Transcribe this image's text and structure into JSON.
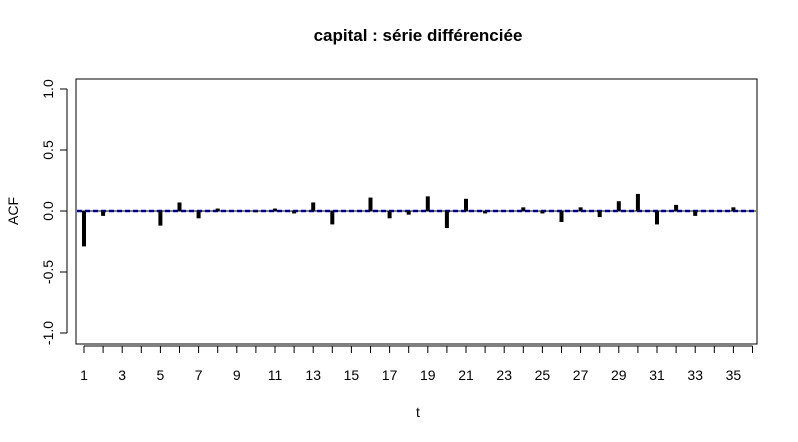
{
  "chart_data": {
    "type": "bar",
    "title": "capital : série différenciée",
    "xlabel": "t",
    "ylabel": "ACF",
    "xlim": [
      1,
      36
    ],
    "ylim": [
      -1.0,
      1.0
    ],
    "x_ticks": [
      1,
      3,
      5,
      7,
      9,
      11,
      13,
      15,
      17,
      19,
      21,
      23,
      25,
      27,
      29,
      31,
      33,
      35
    ],
    "y_ticks": [
      "-1.0",
      "-0.5",
      "0.0",
      "0.5",
      "1.0"
    ],
    "confidence_bounds": [
      -0.004,
      0.004
    ],
    "bound_color": "#0000ff",
    "bar_color": "#000000",
    "lags": [
      1,
      2,
      3,
      4,
      5,
      6,
      7,
      8,
      9,
      10,
      11,
      12,
      13,
      14,
      15,
      16,
      17,
      18,
      19,
      20,
      21,
      22,
      23,
      24,
      25,
      26,
      27,
      28,
      29,
      30,
      31,
      32,
      33,
      34,
      35,
      36
    ],
    "values": [
      -0.29,
      -0.04,
      0.0,
      0.0,
      -0.12,
      0.07,
      -0.06,
      0.02,
      0.0,
      -0.01,
      0.02,
      -0.02,
      0.07,
      -0.11,
      0.0,
      0.11,
      -0.06,
      -0.03,
      0.12,
      -0.14,
      0.1,
      -0.02,
      0.0,
      0.03,
      -0.02,
      -0.09,
      0.03,
      -0.05,
      0.08,
      0.14,
      -0.11,
      0.05,
      -0.04,
      0.0,
      0.03,
      0.0
    ]
  }
}
